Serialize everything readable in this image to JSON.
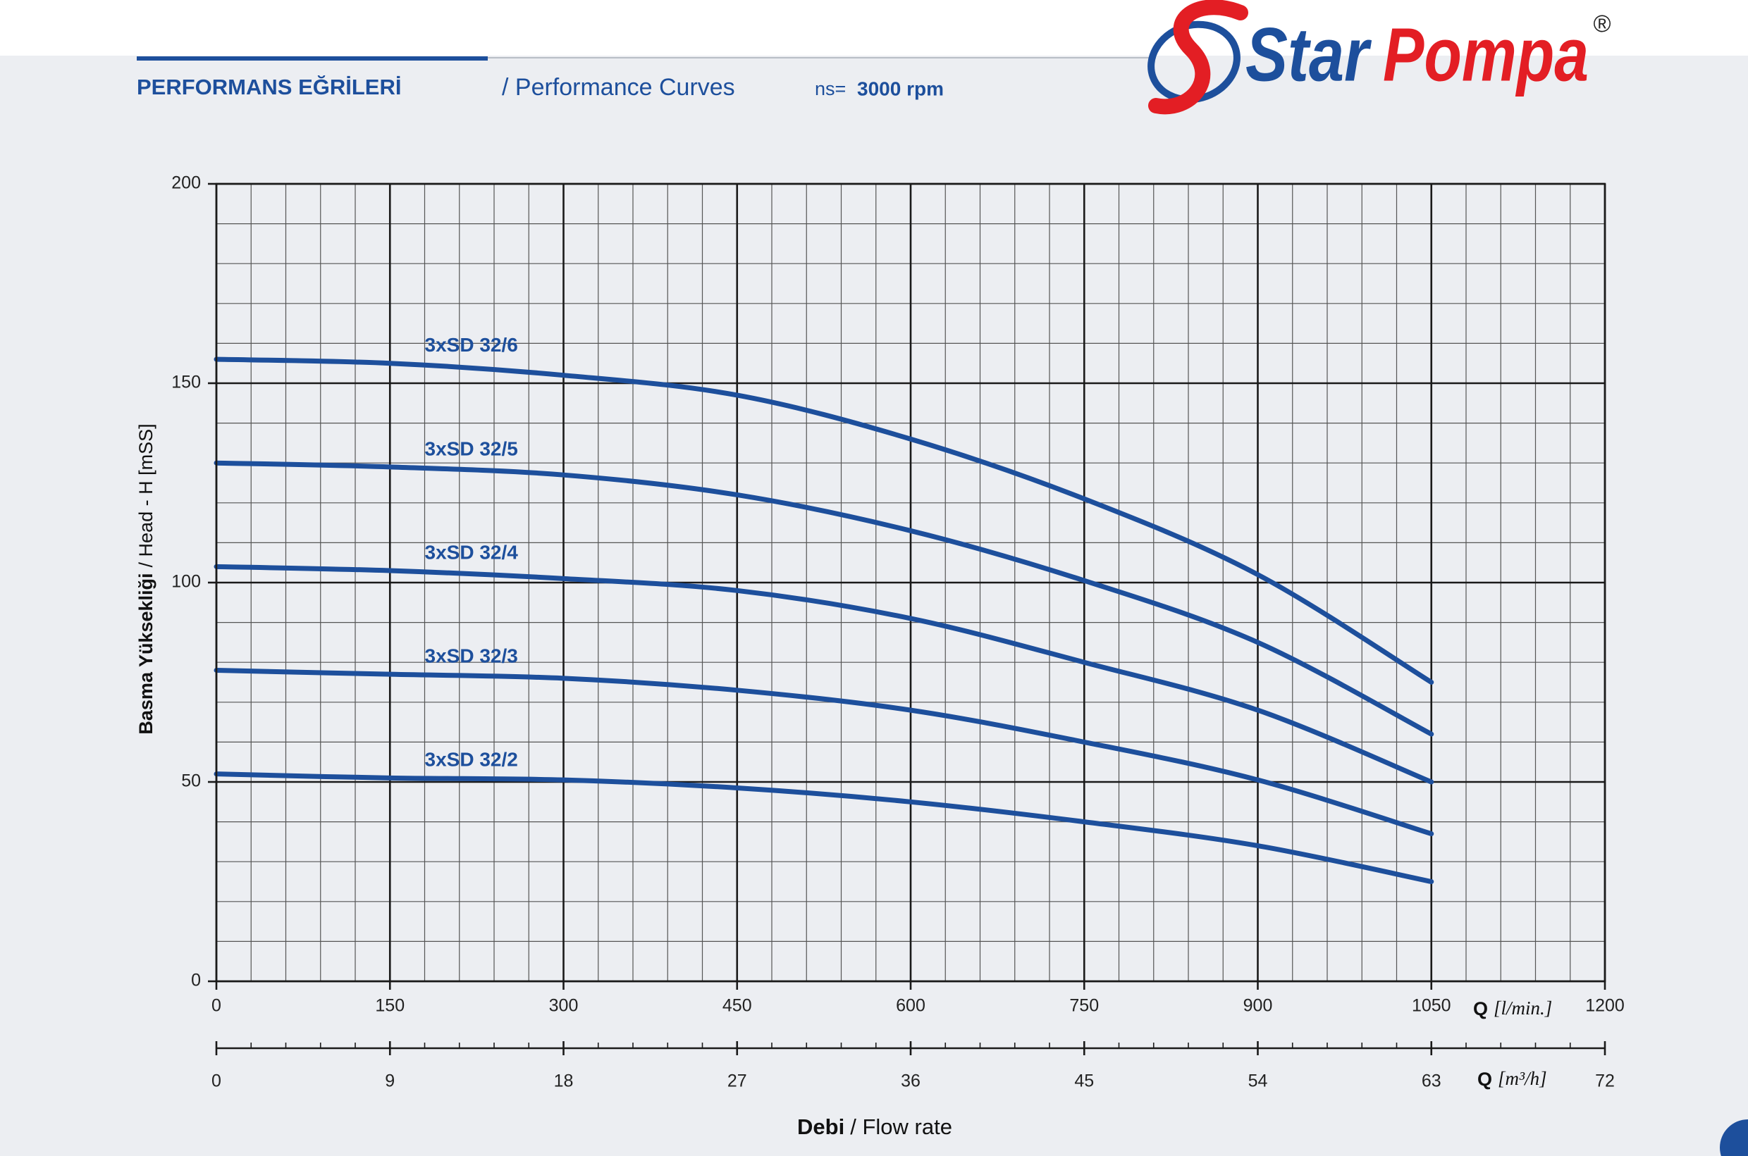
{
  "brand": {
    "first": "Star",
    "second": "Pompa",
    "mark": "®"
  },
  "chart_data": {
    "type": "line",
    "title": "PERFORMANS EĞRİLERİ",
    "subtitle": "/ Performance Curves",
    "speed_label": "ns=",
    "speed": "3000 rpm",
    "y_label_bold": "Basma Yüksekliği",
    "y_label": "/ Head - H [mSS]",
    "x_label_bold": "Debi",
    "x_label": "/ Flow rate",
    "x_unit_symbol": "Q",
    "x_unit": "[l/min.]",
    "x2_unit_symbol": "Q",
    "x2_unit": "[m³/h]",
    "x": [
      0,
      150,
      300,
      450,
      600,
      750,
      900,
      1050
    ],
    "series": [
      {
        "name": "3xSD 32/6",
        "color": "#1d4f9c",
        "values": [
          156,
          155,
          152,
          147,
          136,
          121,
          102,
          75
        ]
      },
      {
        "name": "3xSD 32/5",
        "color": "#1d4f9c",
        "values": [
          130,
          129,
          127,
          122,
          113,
          100.5,
          85,
          62
        ]
      },
      {
        "name": "3xSD 32/4",
        "color": "#1d4f9c",
        "values": [
          104,
          103,
          101,
          98,
          91,
          80,
          68,
          50
        ]
      },
      {
        "name": "3xSD 32/3",
        "color": "#1d4f9c",
        "values": [
          78,
          77,
          76,
          73,
          68,
          60,
          50.5,
          37
        ]
      },
      {
        "name": "3xSD 32/2",
        "color": "#1d4f9c",
        "values": [
          52,
          51,
          50.5,
          48.5,
          45,
          40,
          34,
          25
        ]
      }
    ],
    "xlim": [
      0,
      1200
    ],
    "xticks": [
      0,
      150,
      300,
      450,
      600,
      750,
      900,
      1050,
      1200
    ],
    "x2lim": [
      0,
      72
    ],
    "x2ticks": [
      0,
      9,
      18,
      27,
      36,
      45,
      54,
      63,
      72
    ],
    "ylim": [
      0,
      200
    ],
    "yticks": [
      0,
      50,
      100,
      150,
      200
    ],
    "grid": true
  }
}
